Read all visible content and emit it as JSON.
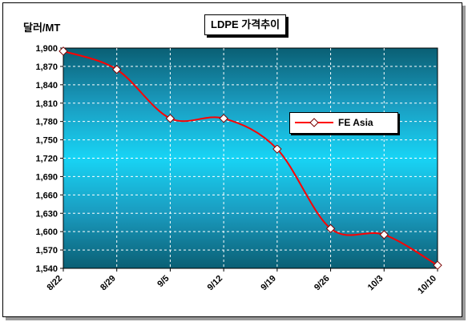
{
  "chart_data": {
    "type": "line",
    "title": "LDPE 가격추이",
    "ylabel": "달러/MT",
    "xlabel": "",
    "categories": [
      "8/22",
      "8/29",
      "9/5",
      "9/12",
      "9/19",
      "9/26",
      "10/3",
      "10/10"
    ],
    "series": [
      {
        "name": "FE Asia",
        "values": [
          1895,
          1865,
          1785,
          1785,
          1735,
          1605,
          1595,
          1545
        ],
        "color": "#ff0000"
      }
    ],
    "yticks": [
      "1,540",
      "1,570",
      "1,600",
      "1,630",
      "1,660",
      "1,690",
      "1,720",
      "1,750",
      "1,780",
      "1,810",
      "1,840",
      "1,870",
      "1,900"
    ],
    "ylim": [
      1540,
      1900
    ],
    "grid": true,
    "legend_position": "right"
  }
}
